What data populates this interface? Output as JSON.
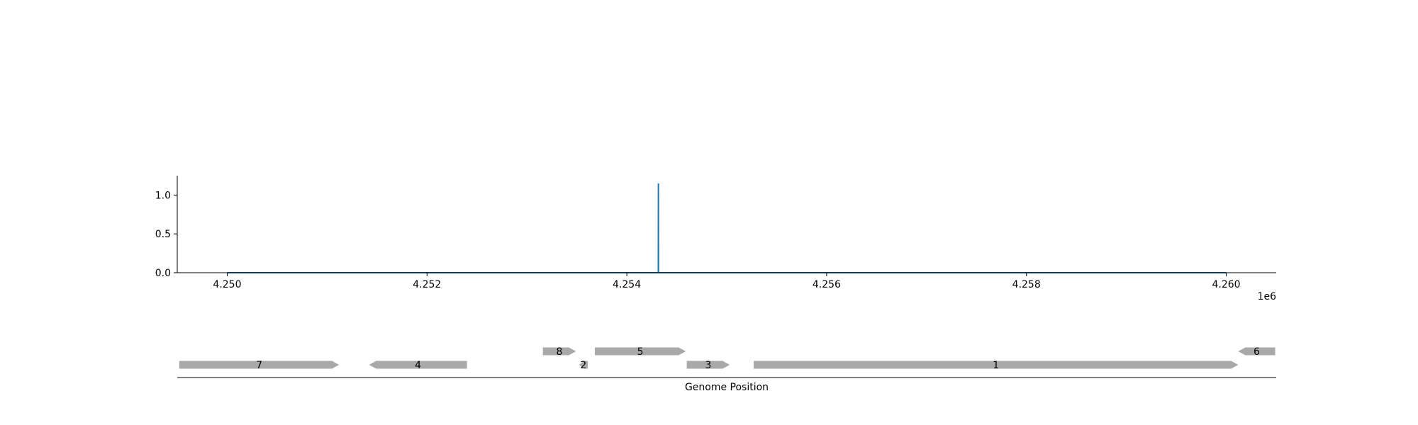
{
  "chart_data": [
    {
      "type": "line",
      "x": [
        4250000,
        4254315,
        4254316,
        4254317,
        4260000
      ],
      "series": [
        {
          "values": [
            0.0,
            0.0,
            1.15,
            0.0,
            0.0
          ],
          "color": "#1f77b4"
        }
      ],
      "xlim": [
        4249500,
        4260500
      ],
      "ylim": [
        0.0,
        1.25
      ],
      "xticks": [
        4250000,
        4252000,
        4254000,
        4256000,
        4258000,
        4260000
      ],
      "xtick_labels": [
        "4.250",
        "4.252",
        "4.254",
        "4.256",
        "4.258",
        "4.260"
      ],
      "yticks": [
        0.0,
        0.5,
        1.0
      ],
      "ytick_labels": [
        "0.0",
        "0.5",
        "1.0"
      ],
      "x_offset_label": "1e6",
      "grid": false,
      "spines": [
        "left",
        "bottom"
      ]
    },
    {
      "type": "gene-track",
      "xlabel": "Genome Position",
      "gene_color": "#a9a9a9",
      "genes": [
        {
          "label": "7",
          "start": 4249520,
          "end": 4251120,
          "strand": "+",
          "row": 0
        },
        {
          "label": "4",
          "start": 4251420,
          "end": 4252400,
          "strand": "-",
          "row": 0
        },
        {
          "label": "8",
          "start": 4253160,
          "end": 4253490,
          "strand": "+",
          "row": 1
        },
        {
          "label": "2",
          "start": 4253520,
          "end": 4253610,
          "strand": "-",
          "row": 0
        },
        {
          "label": "5",
          "start": 4253680,
          "end": 4254590,
          "strand": "+",
          "row": 1
        },
        {
          "label": "3",
          "start": 4254600,
          "end": 4255030,
          "strand": "+",
          "row": 0
        },
        {
          "label": "1",
          "start": 4255270,
          "end": 4260120,
          "strand": "+",
          "row": 0
        },
        {
          "label": "6",
          "start": 4260120,
          "end": 4260490,
          "strand": "-",
          "row": 1
        }
      ]
    }
  ]
}
